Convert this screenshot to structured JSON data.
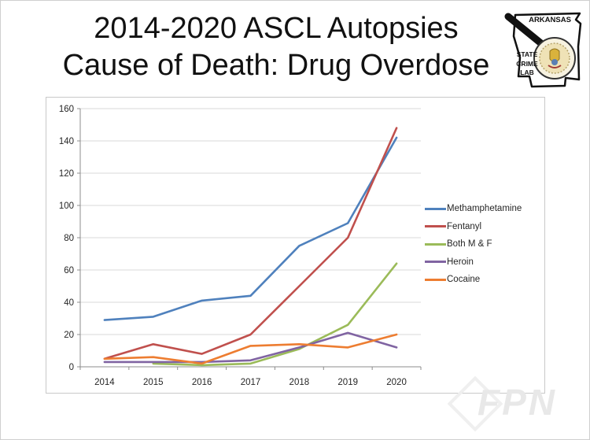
{
  "slide": {
    "title_line1": "2014-2020 ASCL Autopsies",
    "title_line2": "Cause of Death: Drug Overdose"
  },
  "logo": {
    "state_label": "ARKANSAS",
    "org_lines": [
      "STATE",
      "CRIME",
      "LAB"
    ]
  },
  "watermark": "FPN",
  "chart_data": {
    "type": "line",
    "title": "",
    "xlabel": "",
    "ylabel": "",
    "categories": [
      "2014",
      "2015",
      "2016",
      "2017",
      "2018",
      "2019",
      "2020"
    ],
    "series": [
      {
        "name": "Methamphetamine",
        "color": "#4F81BD",
        "values": [
          29,
          31,
          41,
          44,
          75,
          89,
          142
        ]
      },
      {
        "name": "Fentanyl",
        "color": "#C0504D",
        "values": [
          5,
          14,
          8,
          20,
          50,
          80,
          148
        ]
      },
      {
        "name": "Both M & F",
        "color": "#9BBB59",
        "values": [
          null,
          2,
          1,
          2,
          11,
          26,
          64
        ]
      },
      {
        "name": "Heroin",
        "color": "#8064A2",
        "values": [
          3,
          3,
          3,
          4,
          12,
          21,
          12
        ]
      },
      {
        "name": "Cocaine",
        "color": "#ED7D31",
        "values": [
          5,
          6,
          2,
          13,
          14,
          12,
          20
        ]
      }
    ],
    "ylim": [
      0,
      160
    ],
    "yticks": [
      0,
      20,
      40,
      60,
      80,
      100,
      120,
      140,
      160
    ],
    "grid": true,
    "legend_position": "right",
    "colors": {
      "gridline": "#D9D9D9",
      "axis": "#8C8C8C",
      "tick_label": "#262626"
    }
  }
}
